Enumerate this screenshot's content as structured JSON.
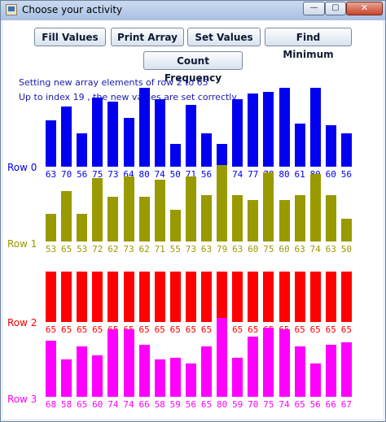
{
  "window": {
    "title": "Choose your activity"
  },
  "window_controls": {
    "minimize": "—",
    "maximize": "▢",
    "close": "✕"
  },
  "buttons": {
    "fill_values": "Fill Values",
    "print_array": "Print Array",
    "set_values": "Set Values",
    "find_minimum": "Find Minimum",
    "count_frequency": "Count Frequency"
  },
  "messages": {
    "line1": "Setting new array elements of row 2 to 65",
    "line2": "Up to index 19 , the new values are set correctly"
  },
  "colors": {
    "row0": "#0000ee",
    "row1": "#999900",
    "row2": "#ff0000",
    "row3": "#ff00ff"
  },
  "rows": [
    {
      "label": "Row 0",
      "values": [
        63,
        70,
        56,
        75,
        73,
        64,
        80,
        74,
        50,
        71,
        56,
        50,
        74,
        77,
        78,
        80,
        61,
        80,
        60,
        56
      ]
    },
    {
      "label": "Row 1",
      "values": [
        53,
        65,
        53,
        72,
        62,
        73,
        62,
        71,
        55,
        73,
        63,
        79,
        63,
        60,
        75,
        60,
        63,
        74,
        63,
        50
      ]
    },
    {
      "label": "Row 2",
      "values": [
        65,
        65,
        65,
        65,
        65,
        65,
        65,
        65,
        65,
        65,
        65,
        65,
        65,
        65,
        65,
        65,
        65,
        65,
        65,
        65
      ]
    },
    {
      "label": "Row 3",
      "values": [
        68,
        58,
        65,
        60,
        74,
        74,
        66,
        58,
        59,
        56,
        65,
        80,
        59,
        70,
        75,
        74,
        65,
        56,
        66,
        67
      ]
    }
  ]
}
